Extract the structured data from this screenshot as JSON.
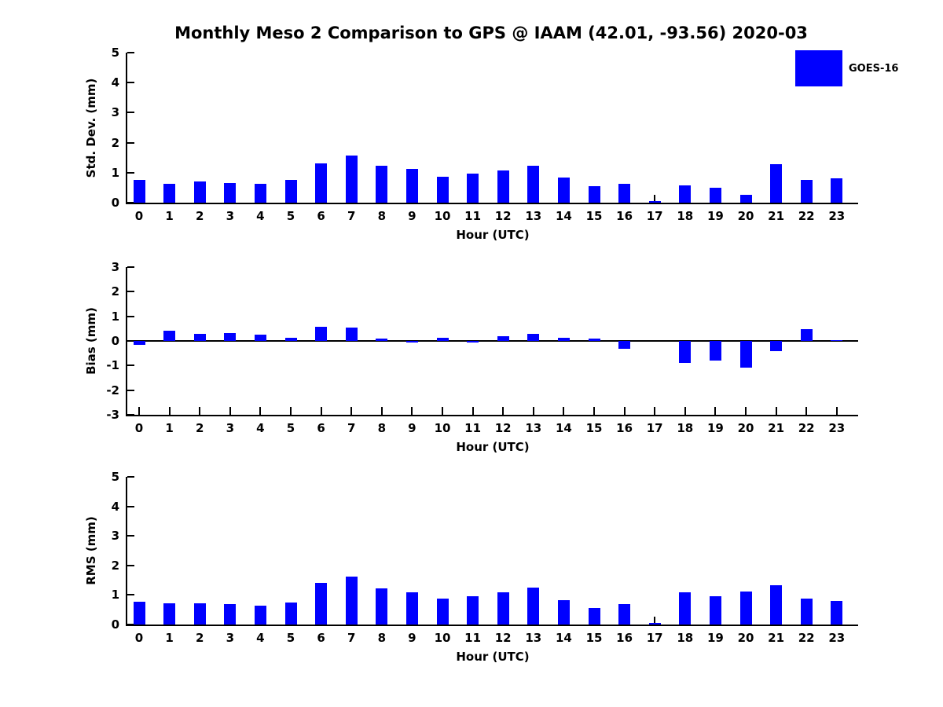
{
  "figure": {
    "title": "Monthly Meso 2 Comparison to GPS @ IAAM (42.01, -93.56) 2020-03",
    "legend": {
      "label": "GOES-16",
      "color": "#0000ff"
    },
    "bar_color": "#0000ff",
    "axis_color": "#000000"
  },
  "chart_data": [
    {
      "type": "bar",
      "title": "",
      "ylabel": "Std. Dev. (mm)",
      "xlabel": "Hour (UTC)",
      "ylim": [
        0,
        5
      ],
      "yticks": [
        0,
        1,
        2,
        3,
        4,
        5
      ],
      "grid": false,
      "legend_position": "upper-right",
      "categories": [
        "0",
        "1",
        "2",
        "3",
        "4",
        "5",
        "6",
        "7",
        "8",
        "9",
        "10",
        "11",
        "12",
        "13",
        "14",
        "15",
        "16",
        "17",
        "18",
        "19",
        "20",
        "21",
        "22",
        "23"
      ],
      "series": [
        {
          "name": "GOES-16",
          "values": [
            0.75,
            0.62,
            0.7,
            0.65,
            0.62,
            0.77,
            1.32,
            1.57,
            1.24,
            1.12,
            0.87,
            0.98,
            1.08,
            1.23,
            0.85,
            0.55,
            0.63,
            0.05,
            0.58,
            0.5,
            0.27,
            1.27,
            0.76,
            0.81
          ]
        }
      ]
    },
    {
      "type": "bar",
      "title": "",
      "ylabel": "Bias (mm)",
      "xlabel": "Hour (UTC)",
      "ylim": [
        -3,
        3
      ],
      "yticks": [
        -3,
        -2,
        -1,
        0,
        1,
        2,
        3
      ],
      "grid": false,
      "zero_line": true,
      "categories": [
        "0",
        "1",
        "2",
        "3",
        "4",
        "5",
        "6",
        "7",
        "8",
        "9",
        "10",
        "11",
        "12",
        "13",
        "14",
        "15",
        "16",
        "17",
        "18",
        "19",
        "20",
        "21",
        "22",
        "23"
      ],
      "series": [
        {
          "name": "GOES-16",
          "values": [
            -0.15,
            0.4,
            0.28,
            0.33,
            0.24,
            0.12,
            0.58,
            0.55,
            0.1,
            -0.06,
            0.14,
            -0.06,
            0.18,
            0.28,
            0.14,
            0.11,
            -0.32,
            0.0,
            -0.9,
            -0.8,
            -1.08,
            -0.4,
            0.48,
            0.04
          ]
        }
      ]
    },
    {
      "type": "bar",
      "title": "",
      "ylabel": "RMS (mm)",
      "xlabel": "Hour (UTC)",
      "ylim": [
        0,
        5
      ],
      "yticks": [
        0,
        1,
        2,
        3,
        4,
        5
      ],
      "grid": false,
      "categories": [
        "0",
        "1",
        "2",
        "3",
        "4",
        "5",
        "6",
        "7",
        "8",
        "9",
        "10",
        "11",
        "12",
        "13",
        "14",
        "15",
        "16",
        "17",
        "18",
        "19",
        "20",
        "21",
        "22",
        "23"
      ],
      "series": [
        {
          "name": "GOES-16",
          "values": [
            0.78,
            0.73,
            0.72,
            0.7,
            0.65,
            0.75,
            1.4,
            1.63,
            1.22,
            1.1,
            0.87,
            0.96,
            1.08,
            1.26,
            0.82,
            0.57,
            0.68,
            0.05,
            1.08,
            0.95,
            1.13,
            1.33,
            0.88,
            0.79
          ]
        }
      ]
    }
  ]
}
